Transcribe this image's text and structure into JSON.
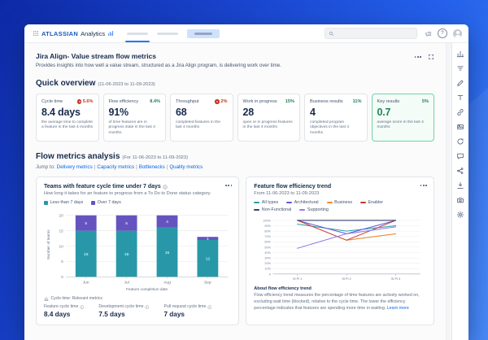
{
  "brand": {
    "primary": "ATLASSIAN",
    "secondary": "Analytics"
  },
  "header": {
    "help_glyph": "?"
  },
  "page": {
    "title": "Jira Align- Value stream flow metrics",
    "description": "Provides insights into how well a value stream, structured as a Jira Align program, is delivering work over time."
  },
  "quick_overview": {
    "heading": "Quick overview",
    "date_range": "(11-06-2023 to 11-09-2023)",
    "cards": [
      {
        "label": "Cycle time",
        "trend": "5.6%",
        "trend_dir": "down",
        "value": "8.4 days",
        "desc": "the average time to complete a feature in the last 4 months",
        "highlight": false
      },
      {
        "label": "Flow efficiency",
        "trend": "8.4%",
        "trend_dir": "up",
        "value": "91%",
        "desc": "of time features are in progress state in the last 4 months",
        "highlight": false
      },
      {
        "label": "Throughput",
        "trend": "2%",
        "trend_dir": "down",
        "value": "68",
        "desc": "completed features in the last 4 months",
        "highlight": false
      },
      {
        "label": "Work in progress",
        "trend": "15%",
        "trend_dir": "up",
        "value": "28",
        "desc": "open or in progress features in the last 4 months",
        "highlight": false
      },
      {
        "label": "Business results",
        "trend": "11%",
        "trend_dir": "up",
        "value": "4",
        "desc": "completed program objectives in the last 4 months",
        "highlight": false
      },
      {
        "label": "Key results",
        "trend": "5%",
        "trend_dir": "up",
        "value": "0.7",
        "desc": "average score in the last 4 months",
        "highlight": true
      }
    ]
  },
  "flow_section": {
    "heading": "Flow metrics analysis",
    "date_range": "(For 11-06-2023 to 11-09-2023)",
    "jump_label": "Jump to:",
    "links": [
      "Delivery metrics",
      "Capacity metrics",
      "Bottlenecks",
      "Quality metrics"
    ]
  },
  "left_card": {
    "footer_label": "Cycle time: Relevant metrics",
    "metrics": [
      {
        "label": "Feature cycle time",
        "value": "8.4 days"
      },
      {
        "label": "Development cycle time",
        "value": "7.5 days"
      },
      {
        "label": "Pull request cycle time",
        "value": "7 days"
      }
    ]
  },
  "right_card": {
    "about_title": "About flow efficiency trend",
    "about_text": "Flow efficiency trend measures the percentage of time features are actively worked on, excluding wait time (blocked), relative to the cycle time. The lower the efficiency percentage indicates that features are spending more time in waiting.",
    "learn_more": "Learn more"
  },
  "right_rail": {
    "icons": [
      "bar-chart",
      "filter",
      "pencil",
      "text",
      "link",
      "image",
      "refresh",
      "comment",
      "share",
      "download",
      "camera",
      "gear"
    ]
  },
  "colors": {
    "accent": "#1558BC",
    "trend_up": "#1F845A",
    "trend_down": "#CA3521",
    "highlight_border": "#72D3A6",
    "highlight_bg": "#F3FCF7"
  },
  "chart_data": [
    {
      "type": "bar",
      "title": "Teams with feature cycle time under 7 days",
      "subtitle": "How long it takes for an feature to progress from a To Do to Done status category.",
      "categories": [
        "Jun",
        "Jul",
        "Aug",
        "Sep"
      ],
      "series": [
        {
          "name": "Less than 7 days",
          "color": "#2898A8",
          "values": [
            15,
            15,
            16,
            12
          ]
        },
        {
          "name": "Over 7 days",
          "color": "#6554C0",
          "values": [
            5,
            5,
            4,
            1
          ]
        }
      ],
      "xlabel": "Feature completion date",
      "ylabel": "Number of teams",
      "ylim": [
        0,
        21
      ],
      "yticks": [
        0,
        5,
        10,
        15,
        20
      ],
      "stacked": true,
      "grid": true
    },
    {
      "type": "line",
      "title": "Feature flow efficiency trend",
      "subtitle": "From 11-06-2023 to 11-09-2023",
      "x": [
        "SI PI 1",
        "SI PI 2",
        "SI PI 3"
      ],
      "series": [
        {
          "name": "All types",
          "color": "#2A9BAD",
          "values": [
            93,
            80,
            90
          ]
        },
        {
          "name": "Architectural",
          "color": "#5E5ADB",
          "values": [
            100,
            75,
            100
          ]
        },
        {
          "name": "Business",
          "color": "#EE8B33",
          "values": [
            null,
            63,
            75
          ]
        },
        {
          "name": "Enabler",
          "color": "#C9372C",
          "values": [
            100,
            63,
            100
          ]
        },
        {
          "name": "Non-Functional",
          "color": "#35416E",
          "values": [
            100,
            100,
            100
          ]
        },
        {
          "name": "Supporting",
          "color": "#8F7EE7",
          "values": [
            48,
            75,
            88
          ]
        }
      ],
      "ylim": [
        0,
        100
      ],
      "ytick_step": 10,
      "y_format": "percent",
      "grid": true,
      "legend_position": "top"
    }
  ]
}
